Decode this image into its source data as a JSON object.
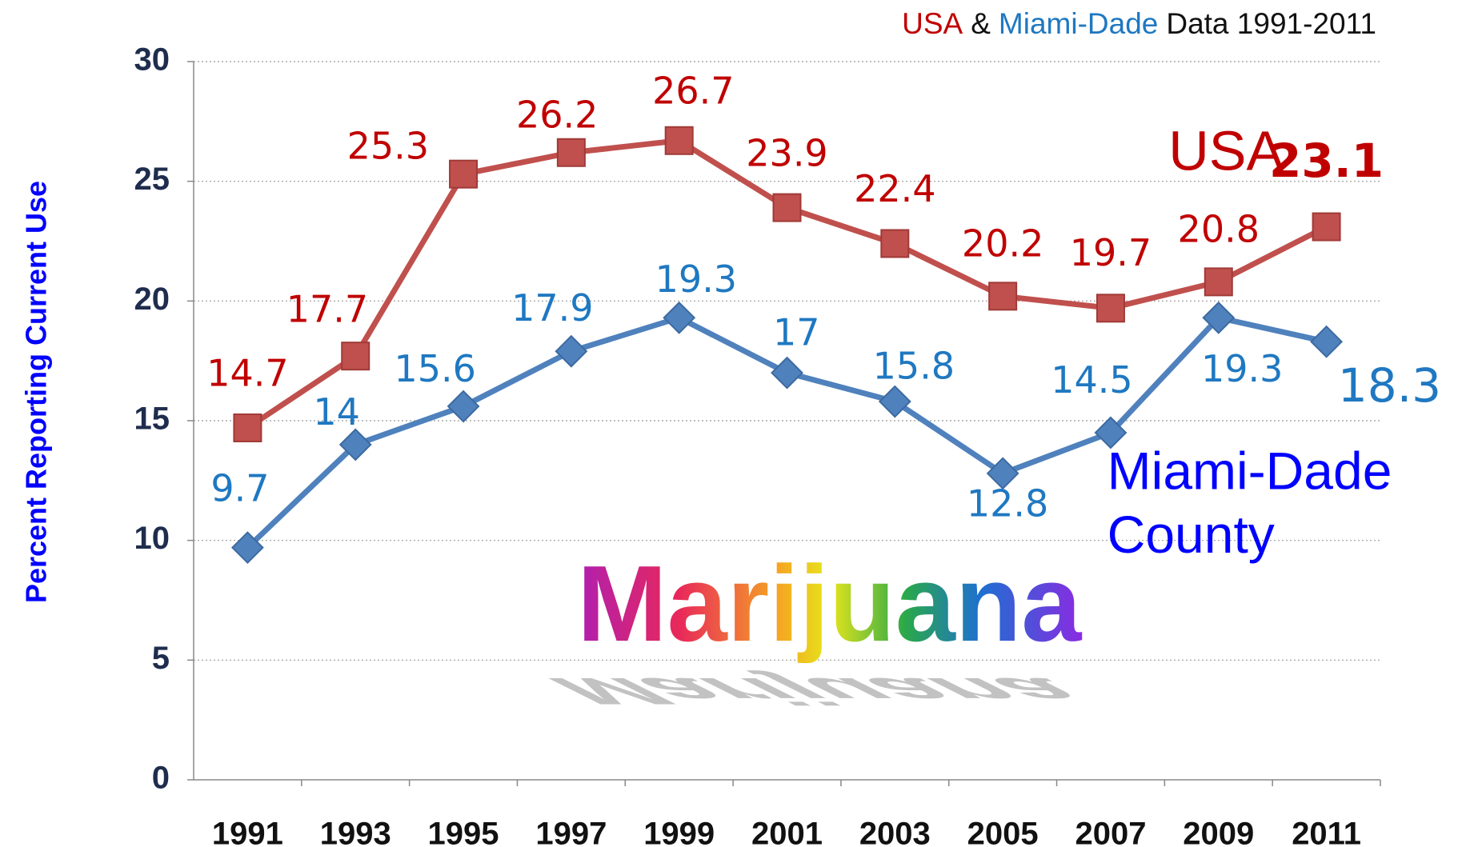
{
  "chart_data": {
    "type": "line",
    "title_parts": [
      {
        "text": "USA",
        "color": "#c00000"
      },
      {
        "text": "&",
        "color": "#111111"
      },
      {
        "text": "Miami-Dade",
        "color": "#1f78c1"
      },
      {
        "text": "Data 1991-2011",
        "color": "#111111"
      }
    ],
    "y_label": "Percent Reporting Current Use",
    "annotation": "Marijuana",
    "categories": [
      "1991",
      "1993",
      "1995",
      "1997",
      "1999",
      "2001",
      "2003",
      "2005",
      "2007",
      "2009",
      "2011"
    ],
    "series": [
      {
        "name": "USA",
        "color": "#c0504d",
        "label_color": "#c00000",
        "name_color": "#c00000",
        "marker": "square",
        "values": [
          14.7,
          17.7,
          25.3,
          26.2,
          26.7,
          23.9,
          22.4,
          20.2,
          19.7,
          20.8,
          23.1
        ]
      },
      {
        "name": "Miami-Dade County",
        "color": "#4f81bd",
        "label_color": "#1f78c1",
        "name_color": "#0000ff",
        "marker": "diamond",
        "values": [
          9.7,
          14,
          15.6,
          17.9,
          19.3,
          17,
          15.8,
          12.8,
          14.5,
          19.3,
          18.3
        ]
      }
    ],
    "ylim": [
      0,
      30
    ],
    "yticks": [
      0,
      5,
      10,
      15,
      20,
      25,
      30
    ],
    "grid": true
  }
}
